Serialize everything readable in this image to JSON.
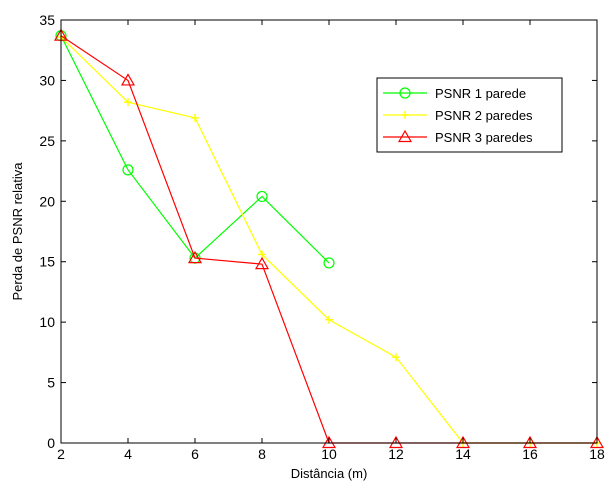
{
  "chart_data": {
    "type": "line",
    "title": "",
    "xlabel": "Distância (m)",
    "ylabel": "Perda de PSNR relativa",
    "xlim": [
      2,
      18
    ],
    "ylim": [
      0,
      35
    ],
    "xticks": [
      2,
      4,
      6,
      8,
      10,
      12,
      14,
      16,
      18
    ],
    "yticks": [
      0,
      5,
      10,
      15,
      20,
      25,
      30,
      35
    ],
    "grid": false,
    "legend_position": "top-right",
    "series": [
      {
        "name": "PSNR 1 parede",
        "color": "#00ff00",
        "marker": "circle",
        "x": [
          2,
          4,
          6,
          8,
          10
        ],
        "y": [
          33.7,
          22.6,
          15.3,
          20.4,
          14.9
        ]
      },
      {
        "name": "PSNR 2 paredes",
        "color": "#ffff00",
        "marker": "plus",
        "x": [
          2,
          4,
          6,
          8,
          10,
          12,
          14,
          16,
          18
        ],
        "y": [
          33.6,
          28.2,
          26.9,
          15.6,
          10.2,
          7.1,
          0,
          0,
          0
        ]
      },
      {
        "name": "PSNR 3 paredes",
        "color": "#ff0000",
        "marker": "triangle",
        "x": [
          2,
          4,
          6,
          8,
          10,
          12,
          14,
          16,
          18
        ],
        "y": [
          33.7,
          30.0,
          15.3,
          14.8,
          0,
          0,
          0,
          0,
          0
        ]
      }
    ]
  }
}
